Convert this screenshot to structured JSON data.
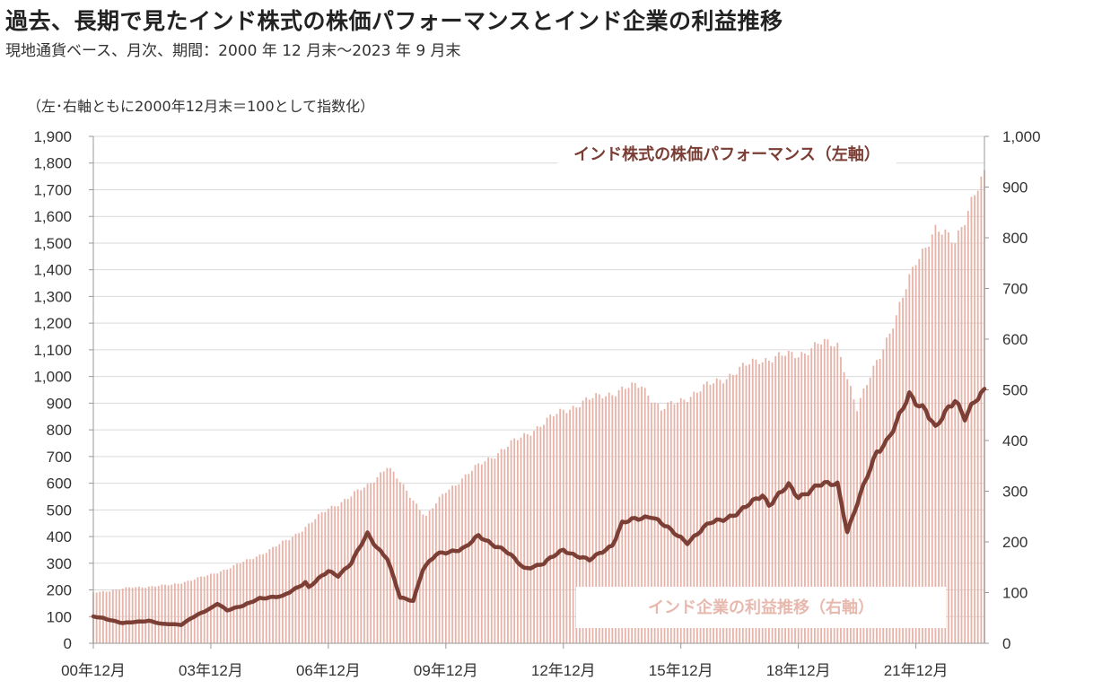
{
  "title": "過去、長期で見たインド株式の株価パフォーマンスとインド企業の利益推移",
  "subtitle": "現地通貨ベース、月次、期間：2000 年 12 月末～2023 年 9 月末",
  "colors": {
    "line": "#7b3f36",
    "bars": "#e7b3a8",
    "grid": "#d9d9d9",
    "axis": "#999999"
  },
  "chart_data": {
    "type": "line+bar",
    "note": "（左･右軸ともに2000年12月末＝100として指数化）",
    "x_start": "2000-12",
    "x_end": "2023-09",
    "x_tick_labels": [
      "00年12月",
      "03年12月",
      "06年12月",
      "09年12月",
      "12年12月",
      "15年12月",
      "18年12月",
      "21年12月"
    ],
    "y_left": {
      "min": 0,
      "max": 1900,
      "step": 100,
      "tick_labels": [
        "0",
        "100",
        "200",
        "300",
        "400",
        "500",
        "600",
        "700",
        "800",
        "900",
        "1,000",
        "1,100",
        "1,200",
        "1,300",
        "1,400",
        "1,500",
        "1,600",
        "1,700",
        "1,800",
        "1,900"
      ]
    },
    "y_right": {
      "min": 0,
      "max": 1000,
      "step": 100,
      "tick_labels": [
        "0",
        "100",
        "200",
        "300",
        "400",
        "500",
        "600",
        "700",
        "800",
        "900",
        "1,000"
      ]
    },
    "series": [
      {
        "name": "インド株式の株価パフォーマンス（左軸）",
        "axis": "left",
        "type": "line",
        "anchors": [
          [
            "2000-12",
            100
          ],
          [
            "2001-03",
            95
          ],
          [
            "2001-09",
            75
          ],
          [
            "2002-05",
            85
          ],
          [
            "2002-09",
            72
          ],
          [
            "2003-03",
            70
          ],
          [
            "2003-06",
            95
          ],
          [
            "2003-12",
            130
          ],
          [
            "2004-02",
            150
          ],
          [
            "2004-05",
            125
          ],
          [
            "2004-10",
            140
          ],
          [
            "2005-03",
            170
          ],
          [
            "2005-10",
            175
          ],
          [
            "2006-05",
            230
          ],
          [
            "2006-06",
            210
          ],
          [
            "2006-12",
            270
          ],
          [
            "2007-03",
            255
          ],
          [
            "2007-07",
            300
          ],
          [
            "2007-12",
            410
          ],
          [
            "2008-03",
            360
          ],
          [
            "2008-06",
            320
          ],
          [
            "2008-10",
            170
          ],
          [
            "2009-02",
            160
          ],
          [
            "2009-05",
            280
          ],
          [
            "2009-09",
            330
          ],
          [
            "2010-06",
            360
          ],
          [
            "2010-10",
            400
          ],
          [
            "2011-06",
            350
          ],
          [
            "2011-12",
            280
          ],
          [
            "2012-06",
            300
          ],
          [
            "2012-12",
            350
          ],
          [
            "2013-08",
            310
          ],
          [
            "2014-03",
            370
          ],
          [
            "2014-06",
            450
          ],
          [
            "2015-03",
            480
          ],
          [
            "2015-09",
            420
          ],
          [
            "2016-02",
            380
          ],
          [
            "2016-09",
            450
          ],
          [
            "2017-06",
            490
          ],
          [
            "2018-01",
            560
          ],
          [
            "2018-03",
            520
          ],
          [
            "2018-09",
            590
          ],
          [
            "2018-12",
            550
          ],
          [
            "2019-06",
            590
          ],
          [
            "2019-12",
            600
          ],
          [
            "2020-03",
            420
          ],
          [
            "2020-06",
            520
          ],
          [
            "2020-12",
            720
          ],
          [
            "2021-03",
            760
          ],
          [
            "2021-06",
            820
          ],
          [
            "2021-10",
            930
          ],
          [
            "2022-03",
            880
          ],
          [
            "2022-06",
            800
          ],
          [
            "2022-12",
            920
          ],
          [
            "2023-03",
            850
          ],
          [
            "2023-06",
            900
          ],
          [
            "2023-09",
            940
          ]
        ]
      },
      {
        "name": "インド企業の利益推移（右軸）",
        "axis": "right",
        "type": "bar",
        "anchors": [
          [
            "2000-12",
            100
          ],
          [
            "2001-12",
            110
          ],
          [
            "2002-12",
            115
          ],
          [
            "2003-12",
            135
          ],
          [
            "2004-12",
            165
          ],
          [
            "2005-12",
            205
          ],
          [
            "2006-12",
            265
          ],
          [
            "2007-12",
            310
          ],
          [
            "2008-06",
            350
          ],
          [
            "2008-12",
            300
          ],
          [
            "2009-06",
            250
          ],
          [
            "2009-12",
            300
          ],
          [
            "2010-12",
            360
          ],
          [
            "2011-12",
            410
          ],
          [
            "2012-12",
            460
          ],
          [
            "2013-12",
            490
          ],
          [
            "2014-12",
            510
          ],
          [
            "2015-06",
            460
          ],
          [
            "2015-12",
            480
          ],
          [
            "2016-12",
            520
          ],
          [
            "2017-12",
            560
          ],
          [
            "2018-12",
            570
          ],
          [
            "2019-06",
            590
          ],
          [
            "2019-12",
            590
          ],
          [
            "2020-06",
            460
          ],
          [
            "2020-12",
            560
          ],
          [
            "2021-06",
            640
          ],
          [
            "2021-12",
            760
          ],
          [
            "2022-06",
            810
          ],
          [
            "2022-12",
            800
          ],
          [
            "2023-06",
            880
          ],
          [
            "2023-09",
            920
          ]
        ]
      }
    ]
  }
}
